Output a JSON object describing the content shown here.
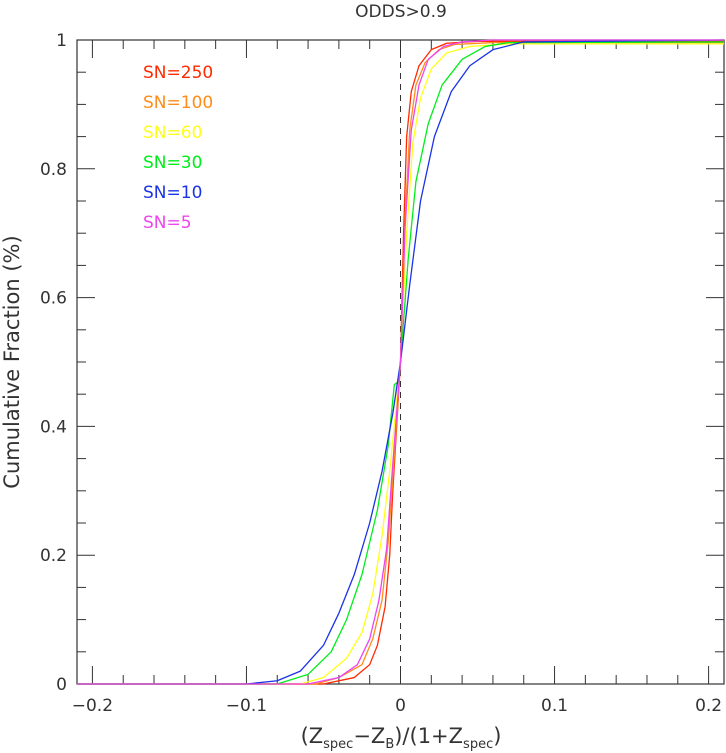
{
  "chart_data": {
    "type": "line",
    "title": "ODDS>0.9",
    "xlabel": {
      "p1": "(Z",
      "s1": "spec",
      "p2": "−Z",
      "s2": "B",
      "p3": ")/(1+Z",
      "s3": "spec",
      "p4": ")"
    },
    "ylabel": "Cumulative Fraction (%)",
    "xlim": [
      -0.21,
      0.21
    ],
    "ylim": [
      0,
      1
    ],
    "x_ticks": [
      -0.2,
      -0.1,
      0,
      0.1,
      0.2
    ],
    "x_tick_labels": [
      "−0.2",
      "−0.1",
      "0",
      "0.1",
      "0.2"
    ],
    "y_ticks": [
      0,
      0.2,
      0.4,
      0.6,
      0.8,
      1
    ],
    "y_tick_labels": [
      "0",
      "0.2",
      "0.4",
      "0.6",
      "0.8",
      "1"
    ],
    "vline_x": 0,
    "legend_position": "top-left",
    "series": [
      {
        "name": "SN=250",
        "color": "#ff2a00",
        "points": [
          [
            -0.21,
            0
          ],
          [
            -0.05,
            0
          ],
          [
            -0.03,
            0.01
          ],
          [
            -0.02,
            0.03
          ],
          [
            -0.015,
            0.06
          ],
          [
            -0.01,
            0.12
          ],
          [
            -0.007,
            0.2
          ],
          [
            -0.005,
            0.3
          ],
          [
            -0.003,
            0.38
          ],
          [
            0,
            0.5
          ],
          [
            0.002,
            0.7
          ],
          [
            0.004,
            0.85
          ],
          [
            0.007,
            0.92
          ],
          [
            0.012,
            0.96
          ],
          [
            0.02,
            0.985
          ],
          [
            0.03,
            0.995
          ],
          [
            0.05,
            0.998
          ],
          [
            0.21,
            0.998
          ]
        ]
      },
      {
        "name": "SN=100",
        "color": "#ff8c1a",
        "points": [
          [
            -0.21,
            0
          ],
          [
            -0.055,
            0
          ],
          [
            -0.04,
            0.01
          ],
          [
            -0.025,
            0.03
          ],
          [
            -0.018,
            0.07
          ],
          [
            -0.012,
            0.13
          ],
          [
            -0.008,
            0.22
          ],
          [
            -0.005,
            0.32
          ],
          [
            0,
            0.5
          ],
          [
            0.003,
            0.72
          ],
          [
            0.006,
            0.86
          ],
          [
            0.01,
            0.93
          ],
          [
            0.016,
            0.965
          ],
          [
            0.025,
            0.985
          ],
          [
            0.035,
            0.993
          ],
          [
            0.06,
            0.996
          ],
          [
            0.21,
            0.996
          ]
        ]
      },
      {
        "name": "SN=60",
        "color": "#ffff1a",
        "points": [
          [
            -0.21,
            0
          ],
          [
            -0.065,
            0
          ],
          [
            -0.05,
            0.01
          ],
          [
            -0.035,
            0.04
          ],
          [
            -0.025,
            0.08
          ],
          [
            -0.018,
            0.14
          ],
          [
            -0.012,
            0.23
          ],
          [
            -0.007,
            0.33
          ],
          [
            0,
            0.5
          ],
          [
            0.004,
            0.7
          ],
          [
            0.008,
            0.84
          ],
          [
            0.013,
            0.91
          ],
          [
            0.02,
            0.955
          ],
          [
            0.03,
            0.98
          ],
          [
            0.045,
            0.99
          ],
          [
            0.07,
            0.994
          ],
          [
            0.21,
            0.994
          ]
        ]
      },
      {
        "name": "SN=30",
        "color": "#00ee1a",
        "points": [
          [
            -0.21,
            0
          ],
          [
            -0.08,
            0
          ],
          [
            -0.06,
            0.015
          ],
          [
            -0.045,
            0.05
          ],
          [
            -0.035,
            0.1
          ],
          [
            -0.025,
            0.17
          ],
          [
            -0.015,
            0.27
          ],
          [
            -0.008,
            0.37
          ],
          [
            -0.004,
            0.465
          ],
          [
            -0.001,
            0.47
          ],
          [
            0,
            0.5
          ],
          [
            0.005,
            0.66
          ],
          [
            0.01,
            0.78
          ],
          [
            0.018,
            0.87
          ],
          [
            0.027,
            0.93
          ],
          [
            0.04,
            0.97
          ],
          [
            0.055,
            0.99
          ],
          [
            0.07,
            0.996
          ],
          [
            0.21,
            0.997
          ]
        ]
      },
      {
        "name": "SN=10",
        "color": "#1a33e6",
        "points": [
          [
            -0.21,
            0
          ],
          [
            -0.1,
            0
          ],
          [
            -0.08,
            0.005
          ],
          [
            -0.065,
            0.02
          ],
          [
            -0.05,
            0.06
          ],
          [
            -0.04,
            0.11
          ],
          [
            -0.03,
            0.17
          ],
          [
            -0.02,
            0.25
          ],
          [
            -0.012,
            0.33
          ],
          [
            -0.005,
            0.42
          ],
          [
            0,
            0.5
          ],
          [
            0.006,
            0.62
          ],
          [
            0.013,
            0.75
          ],
          [
            0.022,
            0.85
          ],
          [
            0.033,
            0.92
          ],
          [
            0.045,
            0.96
          ],
          [
            0.06,
            0.985
          ],
          [
            0.08,
            0.997
          ],
          [
            0.21,
            1
          ]
        ]
      },
      {
        "name": "SN=5",
        "color": "#ee44ee",
        "points": [
          [
            -0.21,
            0
          ],
          [
            -0.06,
            0
          ],
          [
            -0.04,
            0.01
          ],
          [
            -0.028,
            0.03
          ],
          [
            -0.02,
            0.07
          ],
          [
            -0.014,
            0.13
          ],
          [
            -0.009,
            0.21
          ],
          [
            -0.006,
            0.31
          ],
          [
            0,
            0.5
          ],
          [
            0.003,
            0.71
          ],
          [
            0.007,
            0.86
          ],
          [
            0.012,
            0.93
          ],
          [
            0.018,
            0.97
          ],
          [
            0.028,
            0.99
          ],
          [
            0.04,
            0.997
          ],
          [
            0.06,
            1
          ],
          [
            0.21,
            1
          ]
        ]
      }
    ]
  }
}
